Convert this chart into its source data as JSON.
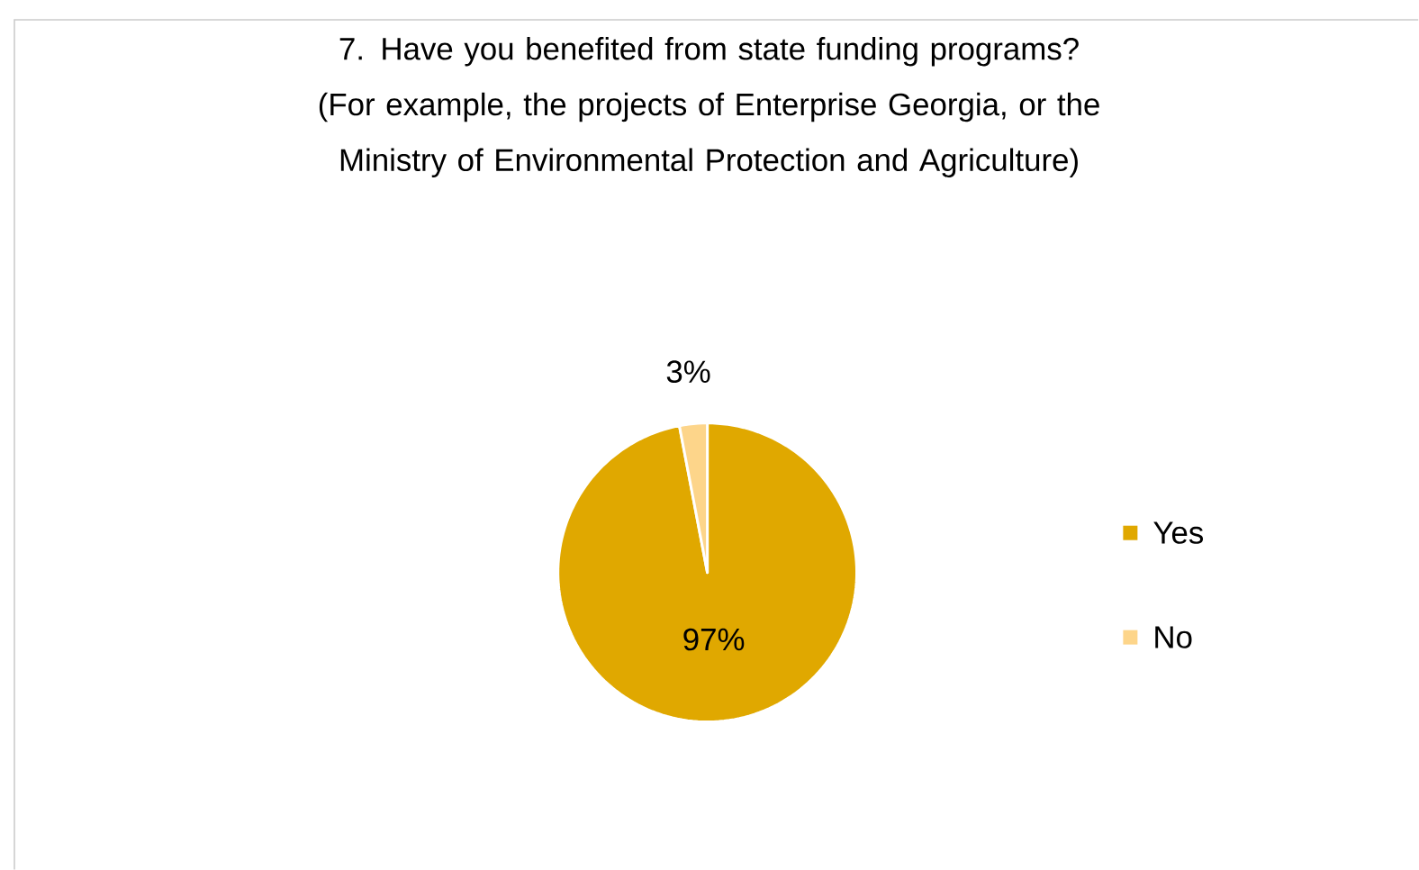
{
  "chart_data": {
    "type": "pie",
    "title": "7. Have you benefited from state funding programs? (For example, the projects of Enterprise Georgia, or the Ministry of Environmental Protection and Agriculture)",
    "categories": [
      "Yes",
      "No"
    ],
    "values": [
      97,
      3
    ],
    "value_labels": [
      "97%",
      "3%"
    ],
    "colors": [
      "#e0a800",
      "#fdd58a"
    ],
    "legend": "right"
  }
}
